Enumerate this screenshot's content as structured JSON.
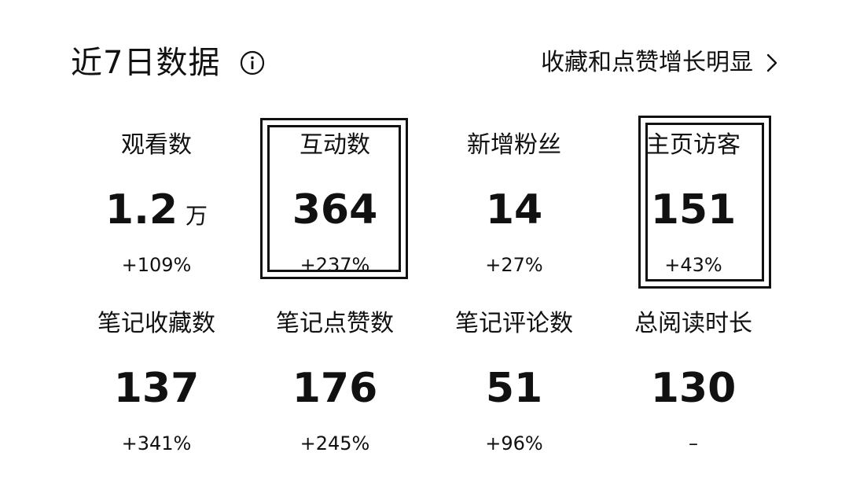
{
  "header": {
    "title": "近7日数据",
    "info_icon": "info-circle-icon",
    "summary_text": "收藏和点赞增长明显",
    "chevron_icon": "chevron-right-icon"
  },
  "metrics": [
    {
      "label": "观看数",
      "value": "1.2",
      "unit": "万",
      "change": "+109%",
      "highlighted": false
    },
    {
      "label": "互动数",
      "value": "364",
      "unit": "",
      "change": "+237%",
      "highlighted": true
    },
    {
      "label": "新增粉丝",
      "value": "14",
      "unit": "",
      "change": "+27%",
      "highlighted": false
    },
    {
      "label": "主页访客",
      "value": "151",
      "unit": "",
      "change": "+43%",
      "highlighted": true
    },
    {
      "label": "笔记收藏数",
      "value": "137",
      "unit": "",
      "change": "+341%",
      "highlighted": false
    },
    {
      "label": "笔记点赞数",
      "value": "176",
      "unit": "",
      "change": "+245%",
      "highlighted": false
    },
    {
      "label": "笔记评论数",
      "value": "51",
      "unit": "",
      "change": "+96%",
      "highlighted": false
    },
    {
      "label": "总阅读时长",
      "value": "130",
      "unit": "",
      "change": "–",
      "highlighted": false
    }
  ],
  "colors": {
    "text": "#111111",
    "background": "#ffffff",
    "highlight_border": "#111111"
  }
}
